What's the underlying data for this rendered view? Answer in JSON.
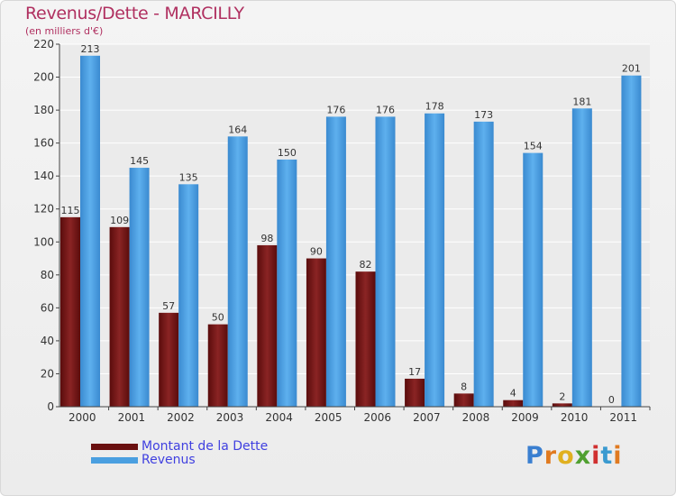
{
  "chart_data": {
    "type": "bar",
    "title": "Revenus/Dette - MARCILLY",
    "subtitle": "(en milliers d'€)",
    "categories": [
      "2000",
      "2001",
      "2002",
      "2003",
      "2004",
      "2005",
      "2006",
      "2007",
      "2008",
      "2009",
      "2010",
      "2011"
    ],
    "series": [
      {
        "name": "Montant de la Dette",
        "values": [
          115,
          109,
          57,
          50,
          98,
          90,
          82,
          17,
          8,
          4,
          2,
          0
        ],
        "color": "#7a1a1a"
      },
      {
        "name": "Revenus",
        "values": [
          213,
          145,
          135,
          164,
          150,
          176,
          176,
          178,
          173,
          154,
          181,
          201
        ],
        "color": "#4a9fe0"
      }
    ],
    "ylim": [
      0,
      220
    ],
    "yticks": [
      0,
      20,
      40,
      60,
      80,
      100,
      120,
      140,
      160,
      180,
      200,
      220
    ],
    "grid": true,
    "legend": "bottom-left"
  },
  "brand": {
    "letters": [
      "P",
      "r",
      "o",
      "x",
      "i",
      "t",
      "i"
    ],
    "colors": [
      "#3a7fd0",
      "#e07a20",
      "#e0b020",
      "#50a030",
      "#d03030",
      "#3a9ad0",
      "#e07a20"
    ]
  }
}
